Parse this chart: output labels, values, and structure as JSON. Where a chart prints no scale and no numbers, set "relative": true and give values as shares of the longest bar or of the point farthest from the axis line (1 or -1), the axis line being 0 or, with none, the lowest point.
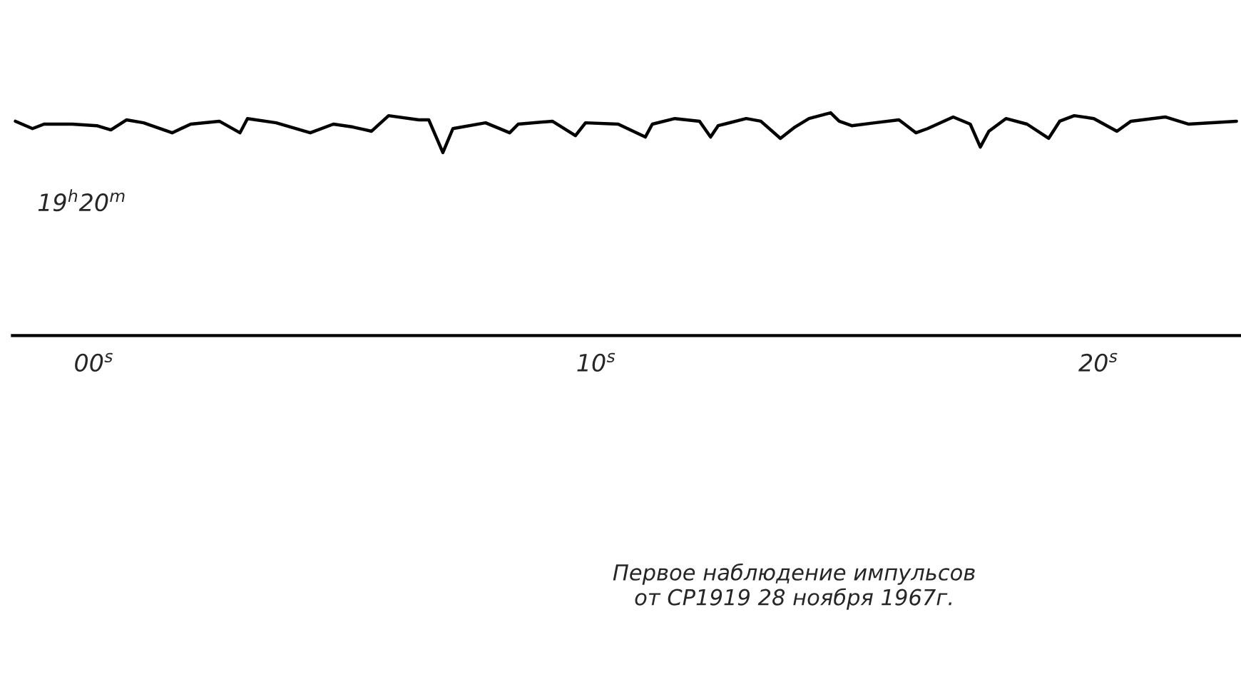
{
  "chart_data": {
    "type": "line",
    "relative": true,
    "x": [
      -1.56,
      -1.22,
      -0.99,
      -0.43,
      0.06,
      0.34,
      0.65,
      0.99,
      1.56,
      1.93,
      2.5,
      2.91,
      3.06,
      3.63,
      4.31,
      4.77,
      5.16,
      5.53,
      5.87,
      6.47,
      6.67,
      6.95,
      7.15,
      7.8,
      8.28,
      8.45,
      9.13,
      9.59,
      9.79,
      10.44,
      10.98,
      11.12,
      11.57,
      12.06,
      12.28,
      12.43,
      12.99,
      13.28,
      13.67,
      13.96,
      14.24,
      14.67,
      14.84,
      15.09,
      15.55,
      16.03,
      16.37,
      16.6,
      17.11,
      17.45,
      17.65,
      17.82,
      18.16,
      18.58,
      19.01,
      19.23,
      19.52,
      19.91,
      20.37,
      20.65,
      21.33,
      21.79,
      22.75
    ],
    "series": [
      {
        "color": "#000000",
        "values": [
          0.962,
          0.929,
          0.949,
          0.949,
          0.942,
          0.923,
          0.968,
          0.955,
          0.91,
          0.949,
          0.962,
          0.91,
          0.974,
          0.955,
          0.91,
          0.949,
          0.936,
          0.917,
          0.987,
          0.968,
          0.968,
          0.821,
          0.929,
          0.955,
          0.91,
          0.949,
          0.962,
          0.897,
          0.955,
          0.949,
          0.891,
          0.949,
          0.974,
          0.962,
          0.891,
          0.942,
          0.974,
          0.962,
          0.885,
          0.936,
          0.974,
          1,
          0.962,
          0.942,
          0.955,
          0.968,
          0.91,
          0.929,
          0.981,
          0.949,
          0.846,
          0.917,
          0.974,
          0.949,
          0.885,
          0.962,
          0.987,
          0.974,
          0.917,
          0.962,
          0.981,
          0.949,
          0.962
        ]
      }
    ],
    "xlim": [
      -1.62,
      22.84
    ],
    "xticks": [
      {
        "value": 0,
        "label": "00$^{s}$"
      },
      {
        "value": 10,
        "label": "10$^{s}$"
      },
      {
        "value": 20,
        "label": "20$^{s}$"
      }
    ],
    "grid": false,
    "marker": "none",
    "line_style": "solid",
    "annotations": [
      "19$^{h}$20$^{m}$",
      "Первое наблюдение импульсов\nот СР1919 28 ноября 1967г."
    ]
  }
}
